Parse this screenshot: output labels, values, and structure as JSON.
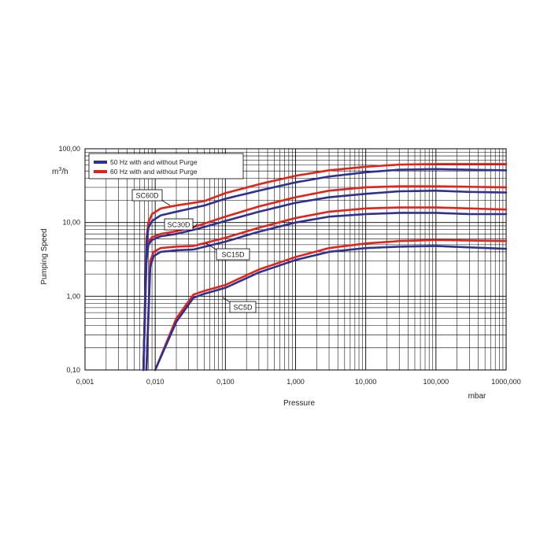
{
  "chart_data": {
    "type": "line",
    "x_scale": "log",
    "y_scale": "log",
    "xlim": [
      0.001,
      1000
    ],
    "ylim": [
      0.1,
      100
    ],
    "grid": true,
    "xlabel": "Pressure",
    "x_unit": "mbar",
    "ylabel": "Pumping Speed",
    "y_unit_base": "m",
    "y_unit_exp": "3",
    "y_unit_tail": "/h",
    "x_ticks": [
      "0,001",
      "0,010",
      "0,100",
      "1,000",
      "10,000",
      "100,000",
      "1000,000"
    ],
    "y_ticks": [
      "0,10",
      "1,00",
      "10,00",
      "100,00"
    ],
    "legend": {
      "position": "top-left",
      "entries": [
        {
          "label": "50 Hz with and without Purge",
          "color": "#2e3192"
        },
        {
          "label": "60 Hz with and without Purge",
          "color": "#e2231a"
        }
      ]
    },
    "series": [
      {
        "model": "SC60D",
        "freq": "50 Hz",
        "color": "#2e3192",
        "points": [
          [
            0.0068,
            0.1
          ],
          [
            0.0075,
            5
          ],
          [
            0.008,
            8.5
          ],
          [
            0.009,
            10.5
          ],
          [
            0.012,
            12.5
          ],
          [
            0.02,
            14
          ],
          [
            0.05,
            17
          ],
          [
            0.1,
            21
          ],
          [
            0.3,
            27
          ],
          [
            1,
            35
          ],
          [
            3,
            42
          ],
          [
            10,
            48
          ],
          [
            30,
            52
          ],
          [
            100,
            53
          ],
          [
            300,
            52
          ],
          [
            1000,
            51
          ]
        ]
      },
      {
        "model": "SC60D",
        "freq": "60 Hz",
        "color": "#e2231a",
        "points": [
          [
            0.0068,
            0.1
          ],
          [
            0.0075,
            6
          ],
          [
            0.008,
            10
          ],
          [
            0.009,
            13
          ],
          [
            0.012,
            15.5
          ],
          [
            0.02,
            17
          ],
          [
            0.05,
            19.5
          ],
          [
            0.1,
            25
          ],
          [
            0.3,
            33
          ],
          [
            1,
            43
          ],
          [
            3,
            51
          ],
          [
            10,
            57
          ],
          [
            30,
            61
          ],
          [
            100,
            62
          ],
          [
            300,
            62
          ],
          [
            1000,
            62
          ]
        ]
      },
      {
        "model": "SC30D",
        "freq": "50 Hz",
        "color": "#2e3192",
        "points": [
          [
            0.0068,
            0.1
          ],
          [
            0.0075,
            3
          ],
          [
            0.008,
            5
          ],
          [
            0.009,
            5.8
          ],
          [
            0.012,
            6.5
          ],
          [
            0.02,
            7
          ],
          [
            0.04,
            8.2
          ],
          [
            0.1,
            10.5
          ],
          [
            0.3,
            14
          ],
          [
            1,
            18.5
          ],
          [
            3,
            22
          ],
          [
            10,
            24.5
          ],
          [
            30,
            26.5
          ],
          [
            100,
            27
          ],
          [
            300,
            26
          ],
          [
            1000,
            25.5
          ]
        ]
      },
      {
        "model": "SC30D",
        "freq": "60 Hz",
        "color": "#e2231a",
        "points": [
          [
            0.0068,
            0.1
          ],
          [
            0.0075,
            3.5
          ],
          [
            0.008,
            5.5
          ],
          [
            0.009,
            6.3
          ],
          [
            0.012,
            7
          ],
          [
            0.02,
            7.6
          ],
          [
            0.04,
            9
          ],
          [
            0.1,
            12
          ],
          [
            0.3,
            16.5
          ],
          [
            1,
            22
          ],
          [
            3,
            27
          ],
          [
            10,
            30
          ],
          [
            30,
            31
          ],
          [
            100,
            31
          ],
          [
            300,
            30.5
          ],
          [
            1000,
            30
          ]
        ]
      },
      {
        "model": "SC15D",
        "freq": "50 Hz",
        "color": "#2e3192",
        "points": [
          [
            0.0075,
            0.1
          ],
          [
            0.0085,
            2.5
          ],
          [
            0.0095,
            3.5
          ],
          [
            0.012,
            4
          ],
          [
            0.02,
            4.2
          ],
          [
            0.035,
            4.3
          ],
          [
            0.1,
            5.5
          ],
          [
            0.3,
            7.5
          ],
          [
            1,
            10
          ],
          [
            3,
            12
          ],
          [
            10,
            13
          ],
          [
            30,
            13.5
          ],
          [
            100,
            13.5
          ],
          [
            300,
            13
          ],
          [
            1000,
            13
          ]
        ]
      },
      {
        "model": "SC15D",
        "freq": "60 Hz",
        "color": "#e2231a",
        "points": [
          [
            0.0075,
            0.1
          ],
          [
            0.0085,
            3
          ],
          [
            0.0095,
            4
          ],
          [
            0.012,
            4.5
          ],
          [
            0.02,
            4.7
          ],
          [
            0.035,
            4.8
          ],
          [
            0.1,
            6.2
          ],
          [
            0.3,
            8.5
          ],
          [
            1,
            11.5
          ],
          [
            3,
            14
          ],
          [
            10,
            15.5
          ],
          [
            30,
            16
          ],
          [
            100,
            16
          ],
          [
            300,
            15.5
          ],
          [
            1000,
            15
          ]
        ]
      },
      {
        "model": "SC5D",
        "freq": "50 Hz",
        "color": "#2e3192",
        "points": [
          [
            0.01,
            0.1
          ],
          [
            0.02,
            0.45
          ],
          [
            0.035,
            0.95
          ],
          [
            0.05,
            1.08
          ],
          [
            0.1,
            1.3
          ],
          [
            0.3,
            2.1
          ],
          [
            1,
            3.1
          ],
          [
            3,
            4
          ],
          [
            10,
            4.5
          ],
          [
            30,
            4.7
          ],
          [
            100,
            4.8
          ],
          [
            300,
            4.6
          ],
          [
            1000,
            4.4
          ]
        ]
      },
      {
        "model": "SC5D",
        "freq": "60 Hz",
        "color": "#e2231a",
        "points": [
          [
            0.01,
            0.1
          ],
          [
            0.02,
            0.5
          ],
          [
            0.035,
            1.05
          ],
          [
            0.05,
            1.18
          ],
          [
            0.1,
            1.42
          ],
          [
            0.3,
            2.3
          ],
          [
            1,
            3.4
          ],
          [
            3,
            4.5
          ],
          [
            10,
            5.2
          ],
          [
            30,
            5.6
          ],
          [
            100,
            5.8
          ],
          [
            300,
            5.7
          ],
          [
            1000,
            5.6
          ]
        ]
      }
    ],
    "annotations": [
      {
        "text": "SC60D",
        "series_index": 1
      },
      {
        "text": "SC30D",
        "series_index": 3
      },
      {
        "text": "SC15D",
        "series_index": 5
      },
      {
        "text": "SC5D",
        "series_index": 7
      }
    ]
  }
}
